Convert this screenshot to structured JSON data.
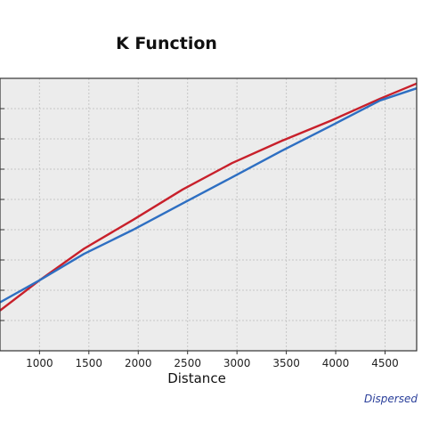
{
  "chart_data": {
    "type": "line",
    "title": "K Function",
    "xlabel": "Distance",
    "ylabel": "",
    "footer_text": "Dispersed",
    "xlim": [
      600,
      4820
    ],
    "ylim": [
      0,
      9
    ],
    "x_ticks": [
      1000,
      1500,
      2000,
      2500,
      3000,
      3500,
      4000,
      4500
    ],
    "grid": true,
    "colors": {
      "plot_bg": "#ececec",
      "grid": "#c6c6c6",
      "axis": "#333333"
    },
    "series": [
      {
        "color": "#c8202b",
        "x": [
          600,
          1000,
          1450,
          1950,
          2450,
          2950,
          3450,
          3950,
          4450,
          4820
        ],
        "y": [
          1.33,
          2.33,
          3.37,
          4.33,
          5.33,
          6.2,
          6.93,
          7.6,
          8.33,
          8.83
        ]
      },
      {
        "color": "#2e6fc2",
        "x": [
          600,
          1000,
          1450,
          1950,
          2450,
          2950,
          3450,
          3950,
          4450,
          4820
        ],
        "y": [
          1.6,
          2.33,
          3.2,
          4.0,
          4.87,
          5.73,
          6.6,
          7.43,
          8.27,
          8.67
        ]
      }
    ]
  }
}
